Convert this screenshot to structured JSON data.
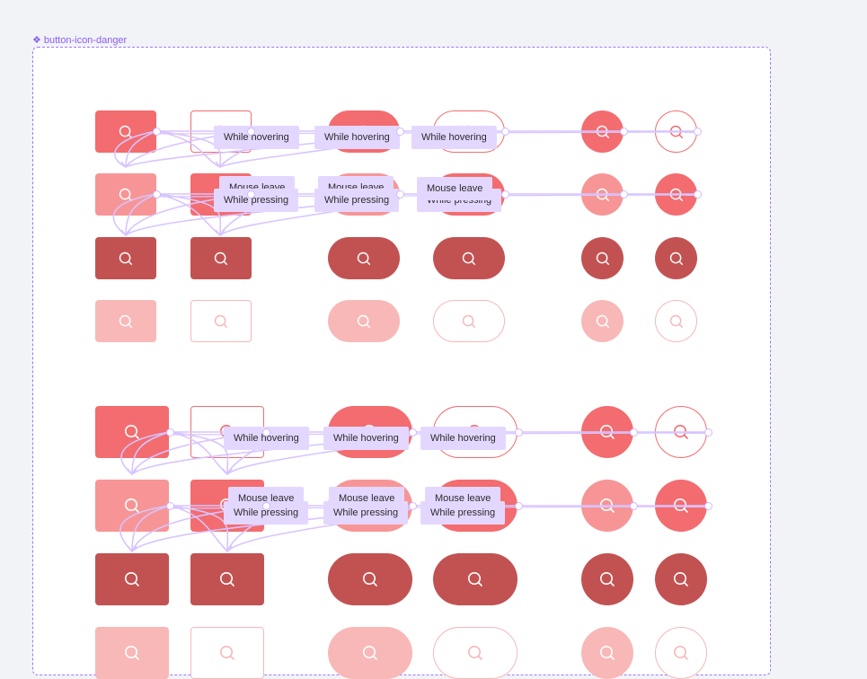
{
  "frame": {
    "title": "button-icon-danger",
    "title_icon": "component-icon"
  },
  "colors": {
    "primary": "#f36c6f",
    "hover": "#f79596",
    "pressed": "#c25252",
    "disabled": "#f8b8b8",
    "outline": "#f36c6f",
    "outline_disabled": "#f6b8b9",
    "prototype": "#e4d7ff",
    "prototype_wire": "#d8c4ff",
    "frame_border": "#9d77f7"
  },
  "icon": "search-icon",
  "interactions": {
    "hover": "While hovering",
    "press": "While pressing",
    "leave": "Mouse leave"
  },
  "sections": [
    {
      "size": "small",
      "columns": [
        "square-filled",
        "square-outline",
        "pill-filled",
        "pill-outline",
        "circle-filled",
        "circle-outline"
      ],
      "rows": [
        "default",
        "hover",
        "pressed",
        "disabled"
      ]
    },
    {
      "size": "large",
      "columns": [
        "square-filled",
        "square-outline",
        "pill-filled",
        "pill-outline",
        "circle-filled",
        "circle-outline"
      ],
      "rows": [
        "default",
        "hover",
        "pressed",
        "disabled"
      ]
    }
  ]
}
